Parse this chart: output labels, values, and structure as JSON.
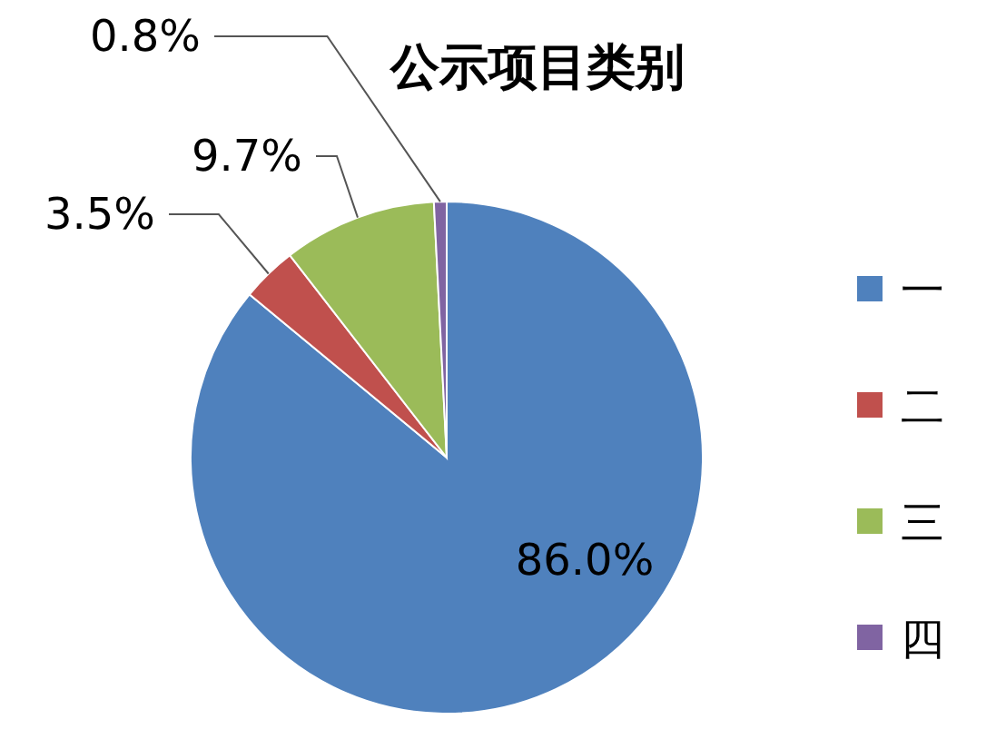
{
  "chart_data": {
    "type": "pie",
    "title": "公示项目类别",
    "categories": [
      "一",
      "二",
      "三",
      "四"
    ],
    "values": [
      86.0,
      3.5,
      9.7,
      0.8
    ],
    "value_labels": [
      "86.0%",
      "3.5%",
      "9.7%",
      "0.8%"
    ],
    "colors": [
      "#4f81bd",
      "#c0504d",
      "#9bbb59",
      "#8064a2"
    ],
    "legend": "right"
  }
}
